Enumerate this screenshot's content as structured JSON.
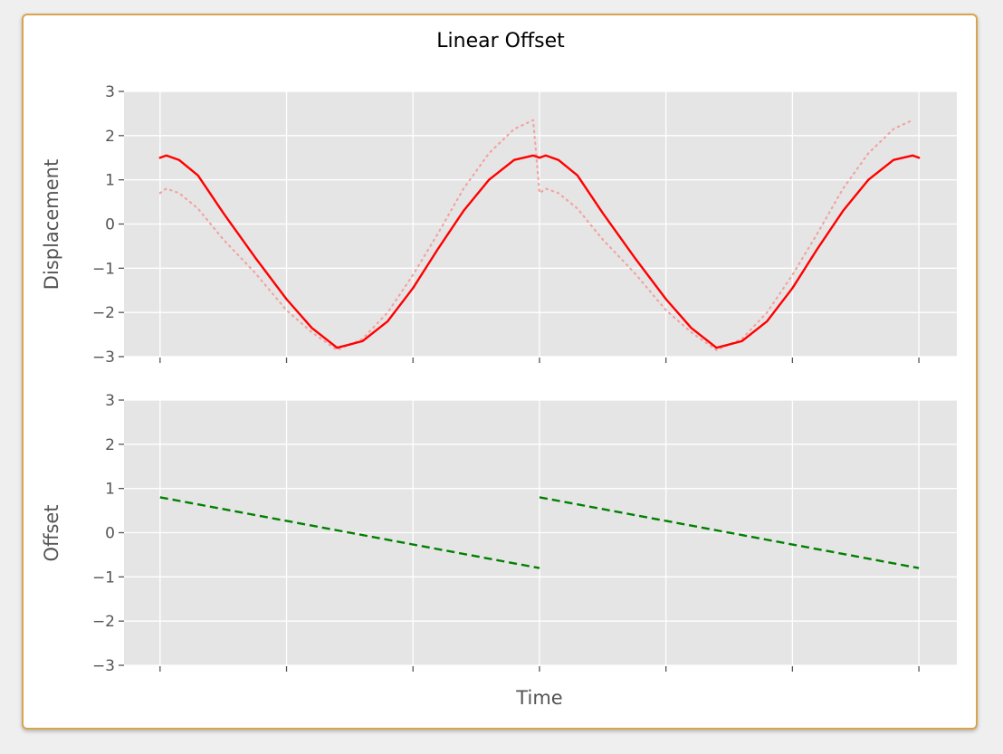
{
  "chart_data": {
    "title": "Linear Offset",
    "xlabel": "Time",
    "grid": true,
    "colors": {
      "displacement": "#ff0000",
      "displacement_faint": "#f2a3a3",
      "offset": "#008000",
      "background": "#e5e5e5",
      "grid": "#ffffff"
    },
    "subplots": [
      {
        "type": "line",
        "ylabel": "Displacement",
        "ylim": [
          -3,
          3
        ],
        "yticks": [
          3,
          2,
          1,
          0,
          -1,
          -2,
          -3
        ],
        "ytick_labels": [
          "3",
          "2",
          "1",
          "0",
          "−1",
          "−2",
          "−3"
        ],
        "xlim": [
          -0.285,
          6.3
        ],
        "x_ticks": [
          0,
          1,
          2,
          3,
          4,
          5,
          6
        ],
        "series": [
          {
            "style": "solid",
            "color": "#ff0000",
            "x": [
              0,
              0.05,
              0.15,
              0.3,
              0.5,
              0.75,
              1.0,
              1.2,
              1.4,
              1.6,
              1.8,
              2.0,
              2.2,
              2.4,
              2.6,
              2.8,
              2.95,
              3.0,
              3.05,
              3.15,
              3.3,
              3.5,
              3.75,
              4.0,
              4.2,
              4.4,
              4.6,
              4.8,
              5.0,
              5.2,
              5.4,
              5.6,
              5.8,
              5.95,
              6.0
            ],
            "y": [
              1.5,
              1.55,
              1.45,
              1.1,
              0.25,
              -0.75,
              -1.7,
              -2.35,
              -2.8,
              -2.65,
              -2.2,
              -1.45,
              -0.55,
              0.3,
              1.0,
              1.45,
              1.55,
              1.5,
              1.55,
              1.45,
              1.1,
              0.25,
              -0.75,
              -1.7,
              -2.35,
              -2.8,
              -2.65,
              -2.2,
              -1.45,
              -0.55,
              0.3,
              1.0,
              1.45,
              1.55,
              1.5
            ]
          },
          {
            "style": "dotted",
            "color": "#f2a3a3",
            "x": [
              0,
              0.05,
              0.15,
              0.3,
              0.5,
              0.75,
              1.0,
              1.2,
              1.4,
              1.6,
              1.8,
              2.0,
              2.2,
              2.4,
              2.6,
              2.8,
              2.95,
              3.0,
              3.05,
              3.15,
              3.3,
              3.5,
              3.75,
              4.0,
              4.2,
              4.4,
              4.6,
              4.8,
              5.0,
              5.2,
              5.4,
              5.6,
              5.8,
              5.95
            ],
            "y": [
              0.7,
              0.8,
              0.7,
              0.35,
              -0.35,
              -1.1,
              -1.95,
              -2.45,
              -2.85,
              -2.6,
              -2.0,
              -1.15,
              -0.2,
              0.8,
              1.6,
              2.15,
              2.35,
              0.7,
              0.8,
              0.7,
              0.35,
              -0.35,
              -1.1,
              -1.95,
              -2.45,
              -2.85,
              -2.6,
              -2.0,
              -1.15,
              -0.2,
              0.8,
              1.6,
              2.15,
              2.35
            ]
          }
        ]
      },
      {
        "type": "line",
        "ylabel": "Offset",
        "ylim": [
          -3,
          3
        ],
        "yticks": [
          3,
          2,
          1,
          0,
          -1,
          -2,
          -3
        ],
        "ytick_labels": [
          "3",
          "2",
          "1",
          "0",
          "−1",
          "−2",
          "−3"
        ],
        "xlim": [
          -0.285,
          6.3
        ],
        "x_ticks": [
          0,
          1,
          2,
          3,
          4,
          5,
          6
        ],
        "series": [
          {
            "style": "dashed",
            "color": "#008000",
            "segments": [
              {
                "x": [
                  0,
                  3
                ],
                "y": [
                  0.8,
                  -0.8
                ]
              },
              {
                "x": [
                  3,
                  6
                ],
                "y": [
                  0.8,
                  -0.8
                ]
              }
            ]
          }
        ]
      }
    ]
  }
}
